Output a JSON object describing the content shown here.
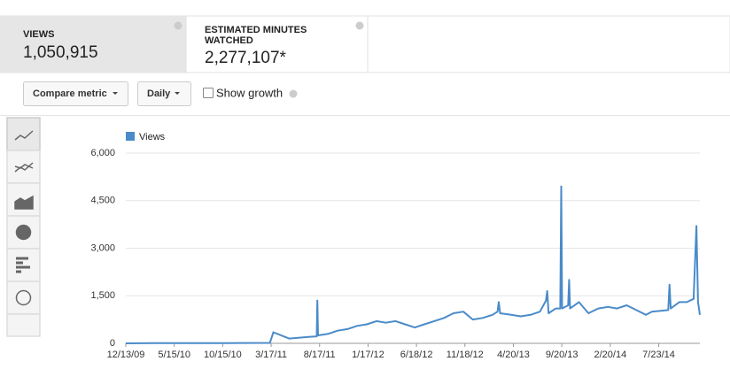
{
  "metrics": [
    {
      "label": "VIEWS",
      "value": "1,050,915"
    },
    {
      "label_lines": [
        "ESTIMATED MINUTES",
        "WATCHED"
      ],
      "value": "2,277,107*"
    }
  ],
  "controls": {
    "compare": "Compare metric",
    "interval": "Daily",
    "growth": "Show growth"
  },
  "chart_data": {
    "type": "line",
    "series": [
      {
        "name": "Views",
        "color": "#4a8bc9",
        "values": [
          0,
          5,
          5,
          5,
          10,
          15,
          350,
          150,
          200,
          220,
          1350,
          250,
          300,
          400,
          450,
          550,
          600,
          700,
          650,
          700,
          600,
          500,
          600,
          700,
          800,
          950,
          1000,
          750,
          800,
          900,
          1000,
          1300,
          950,
          900,
          850,
          900,
          1000,
          1350,
          1650,
          950,
          1100,
          1100,
          4950,
          1100,
          1200,
          2000,
          1100,
          1300,
          950,
          1100,
          1150,
          1100,
          1200,
          1050,
          900,
          1000,
          1050,
          1850,
          1100,
          1300,
          1300,
          1400,
          3700,
          1300,
          900
        ]
      }
    ],
    "x": [
      "12/13/09",
      "3/13/10",
      "6/13/10",
      "9/13/10",
      "12/13/10",
      "3/13/11",
      "3/24/11",
      "5/13/11",
      "7/13/11",
      "8/8/11",
      "8/10/11",
      "8/12/11",
      "9/13/11",
      "10/13/11",
      "11/13/11",
      "12/13/11",
      "1/13/12",
      "2/13/12",
      "3/13/12",
      "4/13/12",
      "5/13/12",
      "6/13/12",
      "7/13/12",
      "8/13/12",
      "9/13/12",
      "10/13/12",
      "11/13/12",
      "12/13/12",
      "1/13/13",
      "2/13/13",
      "3/1/13",
      "3/5/13",
      "3/9/13",
      "4/13/13",
      "5/13/13",
      "6/13/13",
      "7/13/13",
      "8/1/13",
      "8/5/13",
      "8/9/13",
      "9/1/13",
      "9/15/13",
      "9/18/13",
      "9/21/13",
      "10/10/13",
      "10/13/13",
      "10/16/13",
      "11/13/13",
      "12/13/13",
      "1/13/14",
      "2/13/14",
      "3/13/14",
      "4/13/14",
      "5/13/14",
      "6/13/14",
      "7/1/14",
      "8/22/14",
      "8/26/14",
      "8/30/14",
      "9/26/14",
      "10/20/14",
      "11/10/14",
      "11/19/14",
      "11/24/14",
      "11/30/14"
    ],
    "xlim": [
      "12/13/09",
      "11/30/14"
    ],
    "xticks": [
      "12/13/09",
      "5/15/10",
      "10/15/10",
      "3/17/11",
      "8/17/11",
      "1/17/12",
      "6/18/12",
      "11/18/12",
      "4/20/13",
      "9/20/13",
      "2/20/14",
      "7/23/14"
    ],
    "ylim": [
      0,
      6000
    ],
    "yticks": [
      0,
      {
        "value": 1500,
        "label": "1,500"
      },
      {
        "value": 3000,
        "label": "3,000"
      },
      {
        "value": 4500,
        "label": "4,500"
      },
      {
        "value": 6000,
        "label": "6,000"
      }
    ],
    "grid": true
  }
}
